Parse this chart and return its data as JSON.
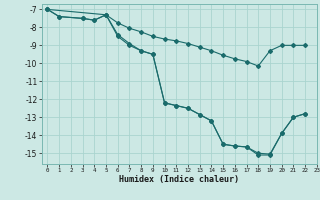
{
  "xlabel": "Humidex (Indice chaleur)",
  "bg_color": "#cce8e4",
  "line_color": "#1a6b6b",
  "grid_color": "#aad4cf",
  "xlim": [
    -0.5,
    23
  ],
  "ylim": [
    -15.6,
    -6.7
  ],
  "yticks": [
    -7,
    -8,
    -9,
    -10,
    -11,
    -12,
    -13,
    -14,
    -15
  ],
  "xticks": [
    0,
    1,
    2,
    3,
    4,
    5,
    6,
    7,
    8,
    9,
    10,
    11,
    12,
    13,
    14,
    15,
    16,
    17,
    18,
    19,
    20,
    21,
    22,
    23
  ],
  "line1_x": [
    0,
    1,
    3,
    4,
    5,
    6,
    7,
    8,
    9,
    10,
    11,
    12,
    13,
    14,
    15,
    16,
    17,
    18,
    19,
    20,
    21,
    22
  ],
  "line1_y": [
    -7.0,
    -7.4,
    -7.5,
    -7.6,
    -7.3,
    -7.75,
    -8.05,
    -8.25,
    -8.5,
    -8.65,
    -8.75,
    -8.9,
    -9.1,
    -9.3,
    -9.55,
    -9.75,
    -9.9,
    -10.15,
    -9.3,
    -9.0,
    -9.0,
    -9.0
  ],
  "line2_x": [
    0,
    1,
    3,
    4,
    5,
    6,
    7,
    8,
    9,
    10,
    11,
    12,
    13,
    14,
    15,
    16,
    17,
    18,
    19,
    20,
    21,
    22
  ],
  "line2_y": [
    -7.0,
    -7.4,
    -7.5,
    -7.6,
    -7.3,
    -8.4,
    -8.9,
    -9.3,
    -9.5,
    -12.2,
    -12.35,
    -12.5,
    -12.85,
    -13.2,
    -14.5,
    -14.6,
    -14.65,
    -15.0,
    -15.05,
    -13.9,
    -13.0,
    -12.8
  ],
  "line3_x": [
    0,
    5,
    6,
    7,
    8,
    9,
    10,
    11,
    12,
    13,
    14,
    15,
    16,
    17,
    18,
    19,
    20,
    21,
    22
  ],
  "line3_y": [
    -7.0,
    -7.3,
    -8.5,
    -9.0,
    -9.3,
    -9.5,
    -12.2,
    -12.35,
    -12.5,
    -12.85,
    -13.2,
    -14.5,
    -14.6,
    -14.65,
    -15.1,
    -15.1,
    -13.9,
    -13.0,
    -12.8
  ],
  "markersize": 2.0
}
